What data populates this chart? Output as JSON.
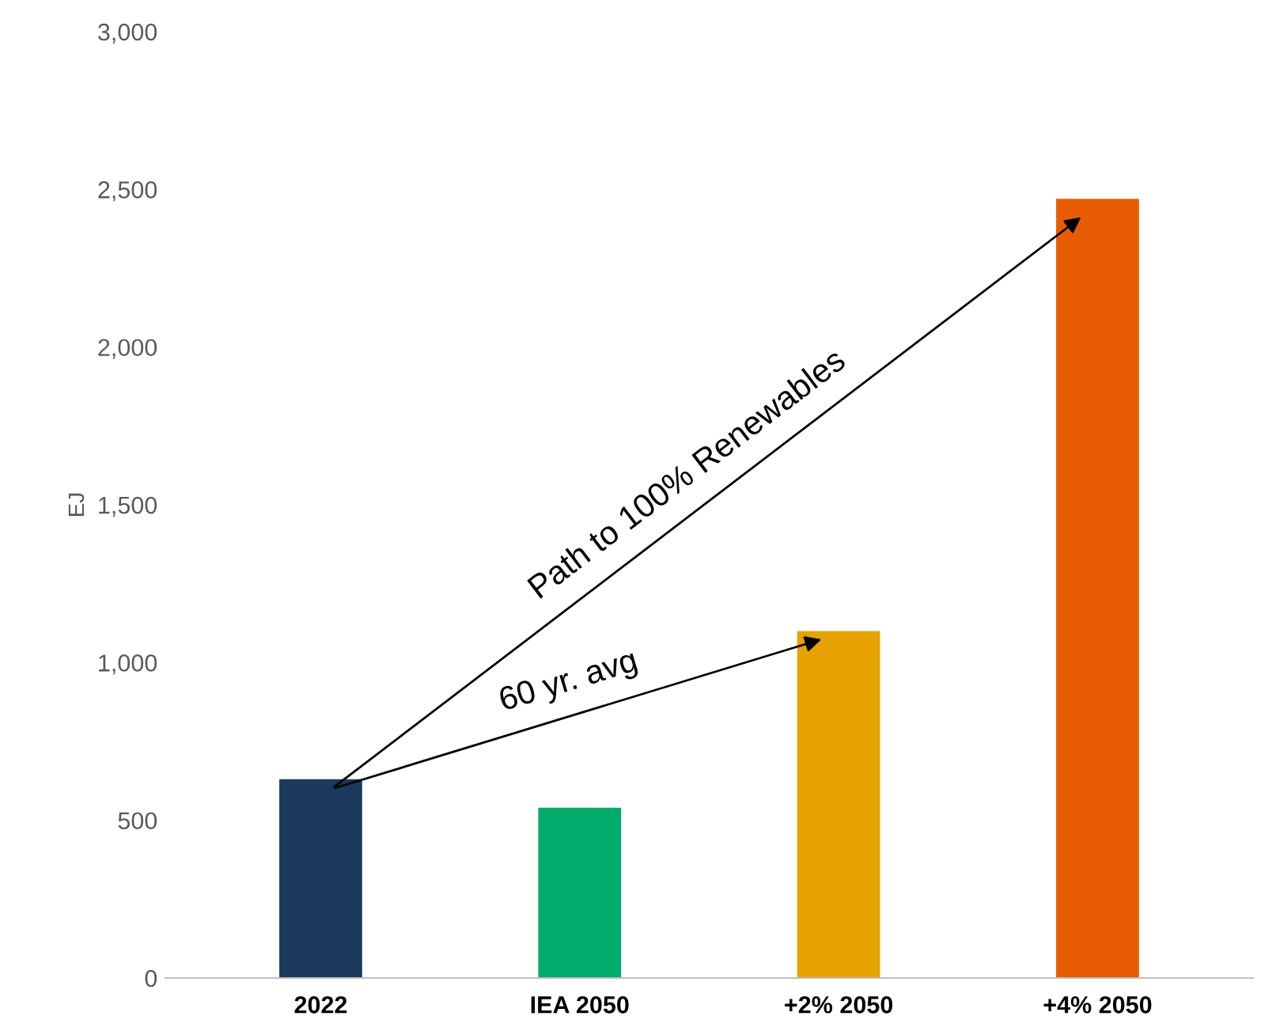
{
  "chart_data": {
    "type": "bar",
    "ylabel": "EJ",
    "categories": [
      "2022",
      "IEA 2050",
      "+2% 2050",
      "+4% 2050"
    ],
    "values": [
      630,
      540,
      1100,
      2470
    ],
    "colors": [
      "#1b3a5c",
      "#00ab6b",
      "#e6a200",
      "#e85d04"
    ],
    "ylim": [
      0,
      3000
    ],
    "yticks": [
      {
        "value": 0,
        "label": "0"
      },
      {
        "value": 500,
        "label": "500"
      },
      {
        "value": 1000,
        "label": "1,000"
      },
      {
        "value": 1500,
        "label": "1,500"
      },
      {
        "value": 2000,
        "label": "2,000"
      },
      {
        "value": 2500,
        "label": "2,500"
      },
      {
        "value": 3000,
        "label": "3,000"
      }
    ],
    "grid": false,
    "legend": false,
    "annotations": [
      "Path to 100% Renewables",
      "60 yr. avg"
    ]
  }
}
